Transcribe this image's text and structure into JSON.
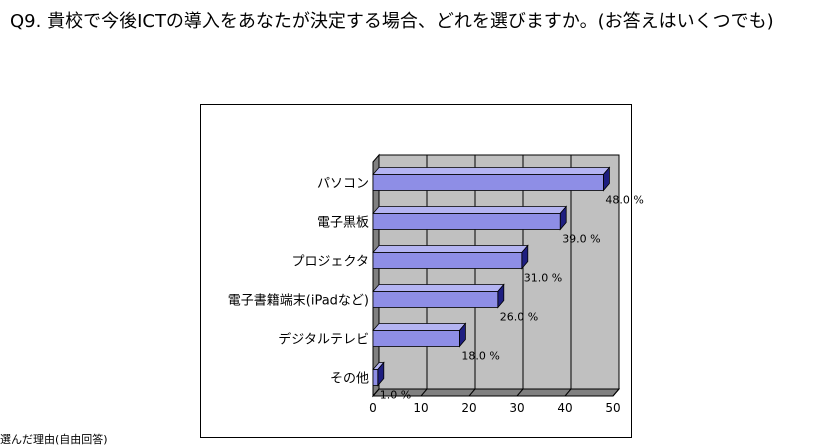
{
  "question": "Q9. 貴校で今後ICTの導入をあなたが決定する場合、どれを選びますか。(お答えはいくつでも)",
  "footnote": "選んだ理由(自由回答)",
  "colors": {
    "bar_front": "#8e8ee6",
    "bar_top": "#b4b4f2",
    "bar_side": "#1e1e80",
    "plot_back": "#c0c0c0",
    "plot_floor": "#808080",
    "grid": "#000000"
  },
  "chart_data": {
    "type": "bar",
    "orientation": "horizontal",
    "categories": [
      "パソコン",
      "電子黒板",
      "プロジェクタ",
      "電子書籍端末(iPadなど)",
      "デジタルテレビ",
      "その他"
    ],
    "values": [
      48.0,
      39.0,
      31.0,
      26.0,
      18.0,
      1.0
    ],
    "value_labels": [
      "48.0 %",
      "39.0 %",
      "31.0 %",
      "26.0 %",
      "18.0 %",
      "1.0 %"
    ],
    "x_ticks": [
      "0",
      "10",
      "20",
      "30",
      "40",
      "50"
    ],
    "xlim": [
      0,
      50
    ],
    "grid": true,
    "style": "3d"
  }
}
